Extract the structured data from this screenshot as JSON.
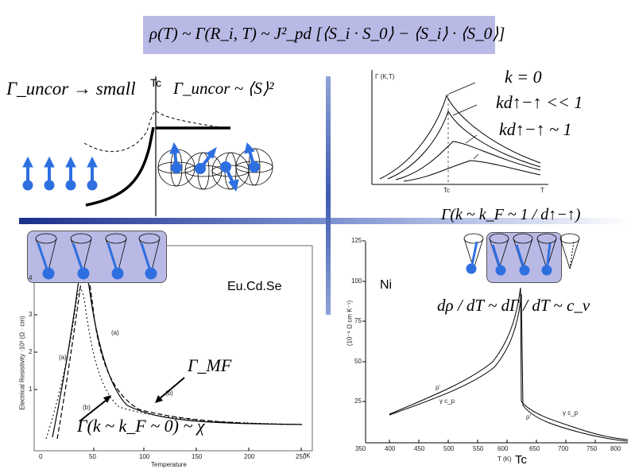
{
  "header_formula": "ρ(T) ~ Γ(R_i, T) ~ J²_pd [⟨S_i · S_0⟩ − ⟨S_i⟩ · ⟨S_0⟩]",
  "left_top": {
    "gamma_small": "Γ_uncor → small",
    "tc_label": "Tc",
    "gamma_corr": "Γ_uncor ~ ⟨S⟩²"
  },
  "right_top": {
    "y_axis_label": "Γ (K,T)",
    "x_tick_tc": "Tc",
    "x_tick_t": "T",
    "k0": "k = 0",
    "kd_small": "kd↑−↑ << 1",
    "kd_one": "kd↑−↑ ~ 1",
    "gamma_kf": "Γ(k ~ k_F ~ 1 / d↑−↑)"
  },
  "eucdse": {
    "label": "Eu.Cd.Se",
    "y_axis": "Electrical Resistivity ·10³ (Ω · cm)",
    "x_axis": "Temperature",
    "x_unit": "°K",
    "x_ticks": [
      "0",
      "50",
      "100",
      "150",
      "200",
      "250"
    ],
    "y_ticks": [
      "1",
      "2",
      "3",
      "4"
    ],
    "curve_labels": [
      "(a)",
      "(a)",
      "(b)",
      "(b)"
    ],
    "gamma_mf": "Γ_MF",
    "gamma_k0": "Γ(k ~ k_F ~ 0) ~ χ"
  },
  "ni": {
    "label": "Ni",
    "relation": "dρ / dT ~ dΓ / dT ~ c_v",
    "y_axis": "(10⁻⁶ Ω cm K⁻¹)",
    "x_axis": "T (K)",
    "tc_label": "Tc",
    "x_ticks": [
      "350",
      "400",
      "450",
      "500",
      "550",
      "600",
      "650",
      "700",
      "750",
      "800"
    ],
    "y_ticks": [
      "25",
      "50",
      "75",
      "100",
      "125"
    ],
    "curve_labels": [
      "ρ'",
      "γ c_p",
      "ρ'",
      "γ c_p"
    ]
  },
  "colors": {
    "box_fill": "#b9b9e6",
    "spin_blue": "#2e6fe0",
    "divider": "#1a2f8a"
  }
}
